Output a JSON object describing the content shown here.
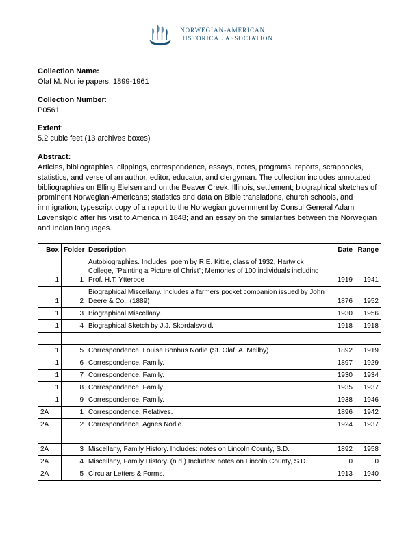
{
  "org": {
    "line1": "NORWEGIAN-AMERICAN",
    "line2": "HISTORICAL ASSOCIATION",
    "logo_color": "#1a5276"
  },
  "fields": {
    "collection_name_label": "Collection Name:",
    "collection_name_value": "Olaf M. Norlie papers, 1899-1961",
    "collection_number_label": "Collection Number",
    "collection_number_value": "P0561",
    "extent_label": "Extent",
    "extent_value": "5.2 cubic feet (13 archives boxes)",
    "abstract_label": "Abstract:",
    "abstract_value": "Articles, bibliographies, clippings, correspondence, essays, notes, programs, reports, scrapbooks, statistics, and verse of an author, editor, educator, and clergyman. The collection includes annotated bibliographies on Elling Eielsen and on the Beaver Creek, Illinois, settlement; biographical sketches of prominent Norwegian-Americans; statistics and data on Bible translations, church schools, and immigration; typescript copy of a report to the Norwegian government by Consul General Adam Løvenskjold after his visit to America in 1848; and an essay on the similarities between the Norwegian and Indian languages."
  },
  "table": {
    "headers": {
      "box": "Box",
      "folder": "Folder",
      "description": "Description",
      "date": "Date",
      "range": "Range"
    },
    "rows": [
      {
        "box": "1",
        "folder": "1",
        "desc": "Autobiographies. Includes: poem by R.E. Kittle, class of 1932, Hartwick College, \"Painting a Picture of Christ\"; Memories of 100 individuals including Prof. H.T. Ytterboe",
        "date": "1919",
        "range": "1941"
      },
      {
        "box": "1",
        "folder": "2",
        "desc": "Biographical Miscellany. Includes a farmers pocket companion issued by John Deere & Co., (1889)",
        "date": "1876",
        "range": "1952"
      },
      {
        "box": "1",
        "folder": "3",
        "desc": "Biographical Miscellany.",
        "date": "1930",
        "range": "1956"
      },
      {
        "box": "1",
        "folder": "4",
        "desc": "Biographical Sketch by J.J. Skordalsvold.",
        "date": "1918",
        "range": "1918"
      },
      {
        "spacer": true
      },
      {
        "box": "1",
        "folder": "5",
        "desc": "Correspondence, Louise Bonhus Norlie (St. Olaf, A. Mellby)",
        "date": "1892",
        "range": "1919"
      },
      {
        "box": "1",
        "folder": "6",
        "desc": "Correspondence, Family.",
        "date": "1897",
        "range": "1929"
      },
      {
        "box": "1",
        "folder": "7",
        "desc": "Correspondence, Family.",
        "date": "1930",
        "range": "1934"
      },
      {
        "box": "1",
        "folder": "8",
        "desc": "Correspondence, Family.",
        "date": "1935",
        "range": "1937"
      },
      {
        "box": "1",
        "folder": "9",
        "desc": "Correspondence, Family.",
        "date": "1938",
        "range": "1946"
      },
      {
        "box": "2A",
        "folder": "1",
        "desc": "Correspondence, Relatives.",
        "date": "1896",
        "range": "1942"
      },
      {
        "box": "2A",
        "folder": "2",
        "desc": "Correspondence, Agnes Norlie.",
        "date": "1924",
        "range": "1937"
      },
      {
        "spacer": true
      },
      {
        "box": "2A",
        "folder": "3",
        "desc": "Miscellany, Family History. Includes: notes on Lincoln County, S.D.",
        "date": "1892",
        "range": "1958"
      },
      {
        "box": "2A",
        "folder": "4",
        "desc": "Miscellany, Family History. (n.d.) Includes: notes on Lincoln County, S.D.",
        "date": "0",
        "range": "0"
      },
      {
        "box": "2A",
        "folder": "5",
        "desc": "Circular Letters & Forms.",
        "date": "1913",
        "range": "1940"
      }
    ]
  }
}
